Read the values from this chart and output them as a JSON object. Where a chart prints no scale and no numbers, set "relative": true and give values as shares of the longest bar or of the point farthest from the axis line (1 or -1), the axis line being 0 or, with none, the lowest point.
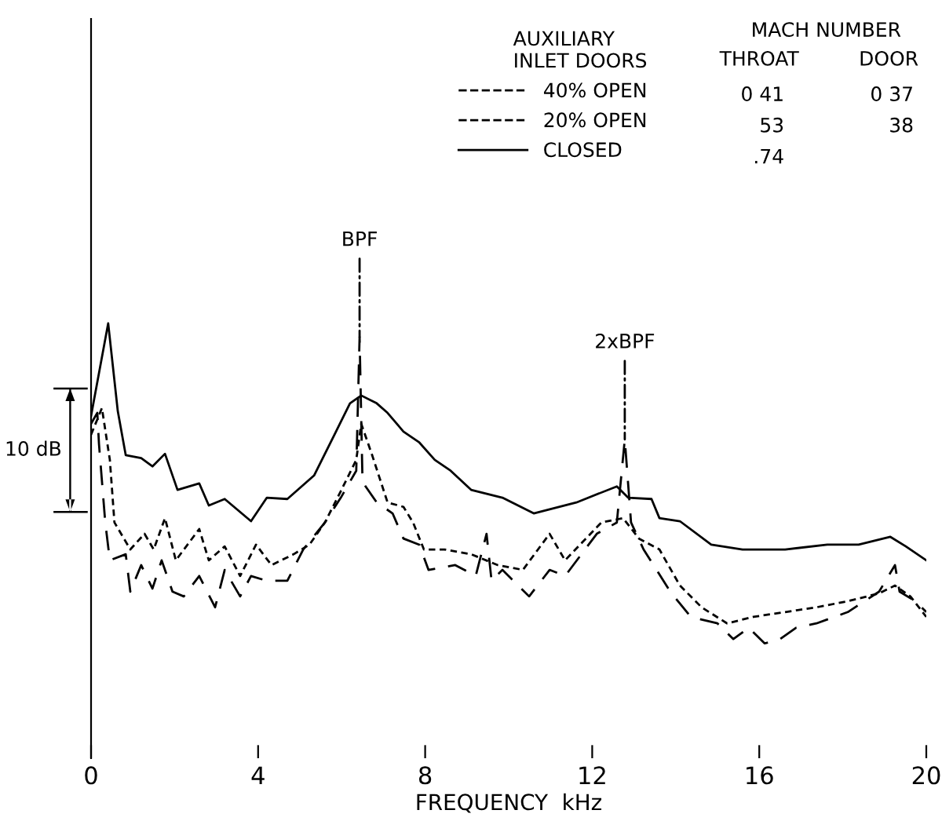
{
  "chart_data": {
    "type": "line",
    "relative": true,
    "xlabel": "FREQUENCY  kHz",
    "xlim": [
      0,
      20
    ],
    "xticks": [
      0,
      4,
      8,
      12,
      16,
      20
    ],
    "legend": "top right",
    "legend_title": "AUXILIARY\nINLET DOORS",
    "grid": false,
    "marker": "none",
    "series": [
      {
        "name": "40% OPEN",
        "color": "#000000",
        "line_style": "dashed",
        "x": [
          0,
          0.15,
          0.19,
          0.34,
          0.45,
          0.83,
          0.94,
          1.2,
          1.47,
          1.69,
          1.95,
          2.22,
          2.59,
          2.97,
          3.2,
          3.57,
          3.83,
          4.21,
          4.7,
          5.08,
          5.6,
          5.98,
          6.35,
          6.43,
          6.5,
          6.84,
          7.22,
          7.48,
          7.86,
          8.08,
          8.72,
          9.21,
          9.47,
          9.59,
          9.85,
          10.23,
          10.49,
          10.98,
          11.35,
          12.11,
          12.59,
          12.78,
          12.93,
          13.23,
          13.87,
          14.36,
          15.0,
          15.38,
          15.75,
          16.13,
          16.5,
          16.88,
          17.37,
          18.12,
          18.87,
          19.25,
          19.36,
          19.74,
          20
        ],
        "values": [
          0.769,
          0.794,
          0.722,
          0.542,
          0.455,
          0.469,
          0.383,
          0.444,
          0.39,
          0.455,
          0.383,
          0.372,
          0.419,
          0.347,
          0.433,
          0.372,
          0.419,
          0.408,
          0.408,
          0.48,
          0.542,
          0.599,
          0.661,
          0.968,
          0.635,
          0.588,
          0.563,
          0.505,
          0.491,
          0.433,
          0.444,
          0.419,
          0.516,
          0.408,
          0.433,
          0.397,
          0.372,
          0.433,
          0.419,
          0.516,
          0.542,
          0.733,
          0.542,
          0.48,
          0.383,
          0.325,
          0.31,
          0.274,
          0.3,
          0.264,
          0.274,
          0.3,
          0.31,
          0.336,
          0.383,
          0.444,
          0.383,
          0.361,
          0.336
        ]
      },
      {
        "name": "20% OPEN",
        "color": "#000000",
        "line_style": "dotted",
        "x": [
          0,
          0.26,
          0.45,
          0.56,
          0.94,
          1.28,
          1.5,
          1.77,
          2.03,
          2.59,
          2.82,
          3.2,
          3.57,
          3.95,
          4.32,
          4.85,
          5.23,
          5.6,
          5.98,
          6.35,
          6.47,
          6.73,
          7.1,
          7.48,
          7.71,
          7.97,
          8.46,
          9.1,
          9.74,
          10.34,
          10.98,
          11.35,
          12.22,
          12.74,
          13.12,
          13.61,
          14.1,
          14.62,
          15.23,
          15.86,
          16.62,
          17.37,
          18.12,
          18.87,
          19.25,
          19.62,
          20
        ],
        "values": [
          0.744,
          0.805,
          0.686,
          0.542,
          0.48,
          0.516,
          0.48,
          0.552,
          0.455,
          0.527,
          0.455,
          0.487,
          0.419,
          0.491,
          0.444,
          0.469,
          0.491,
          0.542,
          0.614,
          0.686,
          0.769,
          0.697,
          0.588,
          0.578,
          0.542,
          0.48,
          0.48,
          0.469,
          0.444,
          0.433,
          0.516,
          0.455,
          0.542,
          0.552,
          0.505,
          0.48,
          0.397,
          0.347,
          0.31,
          0.325,
          0.336,
          0.347,
          0.361,
          0.379,
          0.397,
          0.372,
          0.325
        ]
      },
      {
        "name": "CLOSED",
        "color": "#000000",
        "line_style": "solid",
        "x": [
          0,
          0.41,
          0.64,
          0.83,
          1.2,
          1.47,
          1.77,
          2.07,
          2.59,
          2.82,
          3.2,
          3.83,
          4.21,
          4.7,
          5.34,
          5.83,
          6.2,
          6.47,
          6.84,
          7.1,
          7.48,
          7.86,
          8.23,
          8.61,
          9.1,
          9.85,
          10.6,
          11.62,
          12.59,
          12.86,
          13.42,
          13.61,
          14.1,
          14.85,
          15.6,
          16.62,
          17.63,
          18.38,
          19.14,
          19.51,
          20
        ],
        "values": [
          0.787,
          1.0,
          0.798,
          0.697,
          0.69,
          0.671,
          0.7,
          0.617,
          0.632,
          0.581,
          0.596,
          0.545,
          0.599,
          0.596,
          0.65,
          0.744,
          0.816,
          0.834,
          0.816,
          0.794,
          0.751,
          0.726,
          0.686,
          0.661,
          0.617,
          0.599,
          0.563,
          0.588,
          0.625,
          0.599,
          0.596,
          0.552,
          0.545,
          0.491,
          0.48,
          0.48,
          0.491,
          0.491,
          0.509,
          0.487,
          0.455
        ]
      }
    ],
    "annotations": [
      "MACH NUMBER",
      "THROAT",
      "DOOR",
      "0 41",
      "0 37",
      "53",
      "38",
      ".74",
      {
        "text": "BPF",
        "x": 6.43,
        "y": 0.968
      },
      {
        "text": "2xBPF",
        "x": 12.78,
        "y": 0.733
      },
      "10 dB"
    ]
  }
}
